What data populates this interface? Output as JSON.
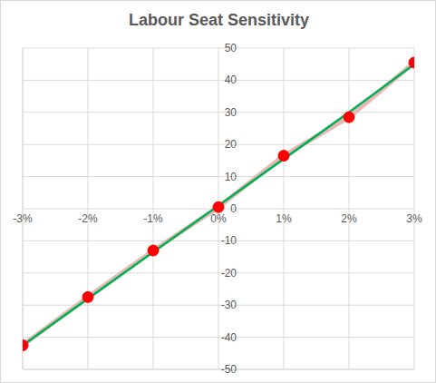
{
  "chart_data": {
    "type": "scatter",
    "title": "Labour Seat Sensitivity",
    "x": [
      -3,
      -2,
      -1,
      0,
      1,
      2,
      3
    ],
    "series": [
      {
        "type": "line",
        "color": "#e6b8b7",
        "line_style": "solid",
        "values": [
          -42.5,
          -27.5,
          -13,
          0.5,
          16.5,
          28.5,
          45.5
        ]
      },
      {
        "type": "line",
        "color": "#00b050",
        "line_style": "solid",
        "values": [
          -42.5,
          -28,
          -13.5,
          1,
          15.5,
          30,
          45
        ]
      },
      {
        "type": "scatter",
        "color": "#ff0000",
        "marker": "circle",
        "values": [
          -42.5,
          -27.5,
          -13,
          0.5,
          16.5,
          28.5,
          45.5
        ]
      }
    ],
    "xlim": [
      -3,
      3
    ],
    "xticks": [
      {
        "value": -3,
        "label": "-3%"
      },
      {
        "value": -2,
        "label": "-2%"
      },
      {
        "value": -1,
        "label": "-1%"
      },
      {
        "value": 0,
        "label": "0%"
      },
      {
        "value": 1,
        "label": "1%"
      },
      {
        "value": 2,
        "label": "2%"
      },
      {
        "value": 3,
        "label": "3%"
      }
    ],
    "ylim": [
      -50,
      50
    ],
    "yticks": [
      -50,
      -40,
      -30,
      -20,
      -10,
      0,
      10,
      20,
      30,
      40,
      50
    ],
    "grid": true
  }
}
